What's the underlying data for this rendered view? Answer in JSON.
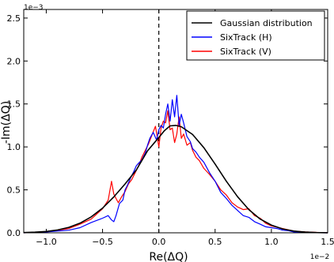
{
  "chart_data": {
    "type": "line",
    "title": "",
    "xlabel": "Re(ΔQ)",
    "ylabel": "-Im(ΔQ)",
    "x_multiplier_label": "1e−2",
    "y_multiplier_label": "1e−3",
    "xlim": [
      -1.2,
      1.5
    ],
    "ylim": [
      0.0,
      2.6
    ],
    "x_ticks": [
      -1.0,
      -0.5,
      0.0,
      0.5,
      1.0,
      1.5
    ],
    "x_tick_labels": [
      "−1.0",
      "−0.5",
      "0.0",
      "0.5",
      "1.0",
      "1.5"
    ],
    "y_ticks": [
      0.0,
      0.5,
      1.0,
      1.5,
      2.0,
      2.5
    ],
    "y_tick_labels": [
      "0.0",
      "0.5",
      "1.0",
      "1.5",
      "2.0",
      "2.5"
    ],
    "vline": {
      "x": 0.0,
      "style": "dashed",
      "color": "#000000"
    },
    "legend_position": "top-right",
    "grid": false,
    "series": [
      {
        "name": "Gaussian distribution",
        "color": "#000000",
        "x": [
          -1.2,
          -1.1,
          -1.0,
          -0.9,
          -0.8,
          -0.7,
          -0.6,
          -0.5,
          -0.4,
          -0.3,
          -0.2,
          -0.1,
          0.0,
          0.05,
          0.1,
          0.15,
          0.2,
          0.3,
          0.4,
          0.5,
          0.6,
          0.7,
          0.8,
          0.9,
          1.0,
          1.1,
          1.2,
          1.3,
          1.4,
          1.5
        ],
        "values": [
          0.003,
          0.007,
          0.016,
          0.033,
          0.063,
          0.112,
          0.186,
          0.288,
          0.418,
          0.569,
          0.73,
          0.955,
          1.11,
          1.19,
          1.245,
          1.25,
          1.235,
          1.145,
          0.99,
          0.8,
          0.6,
          0.42,
          0.27,
          0.16,
          0.09,
          0.045,
          0.02,
          0.008,
          0.003,
          0.001
        ]
      },
      {
        "name": "SixTrack (H)",
        "color": "#0000ff",
        "x": [
          -1.2,
          -1.0,
          -0.8,
          -0.7,
          -0.6,
          -0.5,
          -0.45,
          -0.42,
          -0.4,
          -0.38,
          -0.35,
          -0.32,
          -0.3,
          -0.28,
          -0.25,
          -0.22,
          -0.2,
          -0.18,
          -0.15,
          -0.12,
          -0.1,
          -0.08,
          -0.05,
          -0.02,
          0.0,
          0.02,
          0.04,
          0.06,
          0.08,
          0.1,
          0.12,
          0.14,
          0.16,
          0.18,
          0.2,
          0.22,
          0.25,
          0.28,
          0.3,
          0.33,
          0.36,
          0.4,
          0.45,
          0.5,
          0.55,
          0.6,
          0.65,
          0.7,
          0.75,
          0.8,
          0.85,
          0.9,
          0.95,
          1.0,
          1.05,
          1.1,
          1.15,
          1.2,
          1.3,
          1.4,
          1.5
        ],
        "values": [
          0.0,
          0.01,
          0.03,
          0.06,
          0.12,
          0.17,
          0.2,
          0.15,
          0.13,
          0.2,
          0.34,
          0.38,
          0.5,
          0.55,
          0.64,
          0.72,
          0.78,
          0.81,
          0.85,
          0.93,
          1.02,
          1.1,
          1.17,
          1.08,
          1.2,
          1.25,
          1.22,
          1.38,
          1.5,
          1.3,
          1.55,
          1.35,
          1.6,
          1.25,
          1.38,
          1.28,
          1.12,
          1.06,
          0.98,
          0.94,
          0.88,
          0.82,
          0.7,
          0.6,
          0.47,
          0.4,
          0.32,
          0.26,
          0.2,
          0.18,
          0.13,
          0.1,
          0.07,
          0.06,
          0.05,
          0.03,
          0.025,
          0.01,
          0.005,
          0.002,
          0.0
        ]
      },
      {
        "name": "SixTrack (V)",
        "color": "#ff0000",
        "x": [
          -1.2,
          -1.0,
          -0.8,
          -0.7,
          -0.6,
          -0.5,
          -0.45,
          -0.42,
          -0.4,
          -0.38,
          -0.36,
          -0.33,
          -0.3,
          -0.27,
          -0.24,
          -0.21,
          -0.18,
          -0.15,
          -0.12,
          -0.09,
          -0.06,
          -0.03,
          0.0,
          0.02,
          0.04,
          0.06,
          0.08,
          0.1,
          0.12,
          0.14,
          0.16,
          0.18,
          0.2,
          0.22,
          0.25,
          0.28,
          0.3,
          0.33,
          0.36,
          0.4,
          0.45,
          0.5,
          0.55,
          0.6,
          0.65,
          0.7,
          0.75,
          0.8,
          0.85,
          0.9,
          0.95,
          1.0,
          1.1,
          1.2,
          1.3,
          1.4,
          1.5
        ],
        "values": [
          0.0,
          0.01,
          0.05,
          0.1,
          0.16,
          0.28,
          0.38,
          0.6,
          0.45,
          0.4,
          0.35,
          0.42,
          0.48,
          0.57,
          0.62,
          0.7,
          0.78,
          0.88,
          0.96,
          1.04,
          1.14,
          1.24,
          1.0,
          1.22,
          1.3,
          1.28,
          1.42,
          1.2,
          1.22,
          1.05,
          1.15,
          1.35,
          1.1,
          1.15,
          1.02,
          1.05,
          0.96,
          0.88,
          0.84,
          0.75,
          0.68,
          0.6,
          0.5,
          0.44,
          0.35,
          0.3,
          0.27,
          0.28,
          0.2,
          0.17,
          0.11,
          0.08,
          0.05,
          0.02,
          0.01,
          0.005,
          0.0
        ]
      }
    ]
  }
}
